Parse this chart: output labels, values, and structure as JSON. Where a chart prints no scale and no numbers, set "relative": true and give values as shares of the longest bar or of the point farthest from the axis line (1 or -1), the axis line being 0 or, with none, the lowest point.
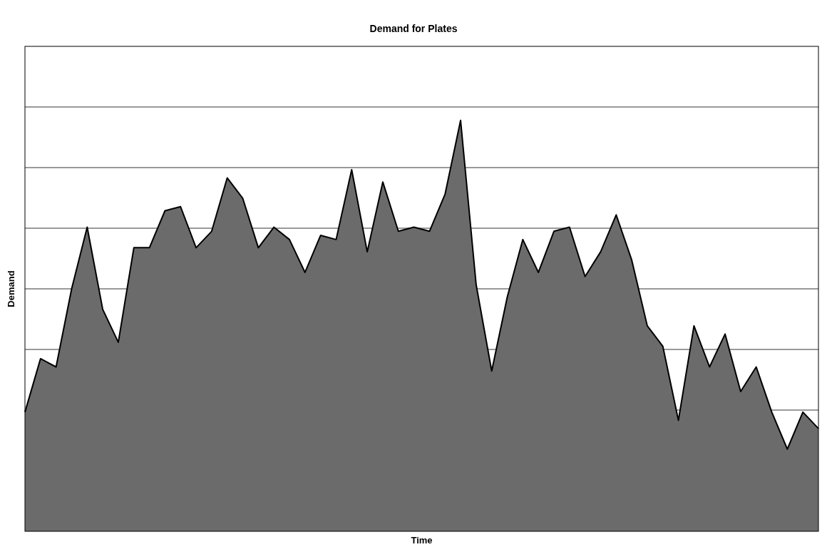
{
  "chart_data": {
    "type": "area",
    "title": "Demand for Plates",
    "xlabel": "Time",
    "ylabel": "Demand",
    "relative": true,
    "grid": "y",
    "categories": [
      null,
      null,
      null,
      null,
      null,
      null,
      null,
      null,
      null,
      null,
      null,
      null,
      null,
      null,
      null,
      null,
      null,
      null,
      null,
      null,
      null,
      null,
      null,
      null,
      null,
      null,
      null,
      null,
      null,
      null,
      null,
      null,
      null,
      null,
      null,
      null,
      null,
      null,
      null,
      null,
      null,
      null,
      null,
      null,
      null,
      null,
      null,
      null,
      null,
      null,
      null,
      null
    ],
    "series": [
      {
        "color": "#6b6b6b",
        "values": [
          0.29,
          0.42,
          0.4,
          0.59,
          0.74,
          0.54,
          0.46,
          0.69,
          0.69,
          0.78,
          0.79,
          0.69,
          0.73,
          0.86,
          0.81,
          0.69,
          0.74,
          0.71,
          0.63,
          0.72,
          0.71,
          0.88,
          0.68,
          0.85,
          0.73,
          0.74,
          0.73,
          0.82,
          1,
          0.6,
          0.39,
          0.57,
          0.71,
          0.63,
          0.73,
          0.74,
          0.62,
          0.68,
          0.77,
          0.66,
          0.5,
          0.45,
          0.27,
          0.5,
          0.4,
          0.48,
          0.34,
          0.4,
          0.29,
          0.2,
          0.29,
          0.25
        ]
      }
    ]
  }
}
